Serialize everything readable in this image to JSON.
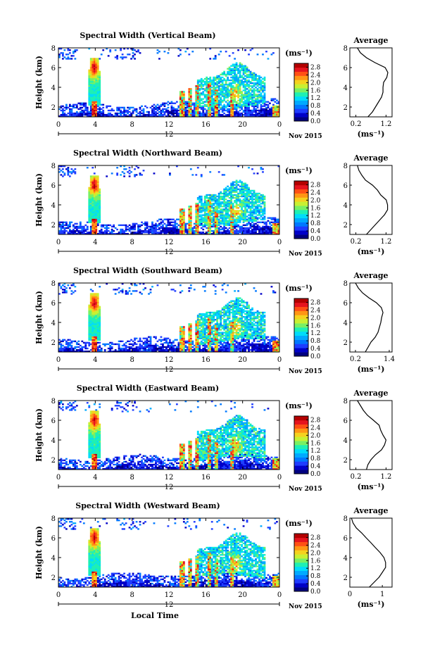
{
  "shared": {
    "date_label": "Nov 2015",
    "day_label": "12",
    "xlabel": "Local Time",
    "ylabel": "Height (km)",
    "colorbar_unit": "(ms⁻¹)",
    "avg_title": "Average",
    "avg_xlabel": "(ms⁻¹)",
    "colors": {
      "palette": [
        "#000080",
        "#0000c8",
        "#1e3cff",
        "#0078ff",
        "#00aaff",
        "#00dcfa",
        "#1ef0b4",
        "#78f064",
        "#c8f032",
        "#f5d21e",
        "#ff9614",
        "#ff5014",
        "#e6141e",
        "#b40000"
      ]
    }
  },
  "chart_data": [
    {
      "type": "heatmap",
      "title": "Spectral Width (Vertical Beam)",
      "x_ticks": [
        "0",
        "4",
        "8",
        "12",
        "16",
        "20",
        "0"
      ],
      "y_ticks": [
        "2",
        "4",
        "6",
        "8"
      ],
      "xlim": [
        0,
        24
      ],
      "ylim": [
        1,
        8
      ],
      "colorbar_ticks": [
        "0.0",
        "0.4",
        "0.8",
        "1.2",
        "1.6",
        "2.0",
        "2.4",
        "2.8"
      ],
      "colorbar_range": [
        0,
        3.0
      ],
      "average_profile": {
        "x_ticks": [
          "0.2",
          "1.2"
        ],
        "xlim": [
          0,
          1.4
        ],
        "height": [
          1,
          1.5,
          2,
          2.5,
          3,
          3.5,
          4,
          4.5,
          5,
          5.5,
          6,
          6.5,
          7,
          7.5,
          8
        ],
        "value": [
          0.6,
          0.75,
          0.85,
          0.95,
          1.05,
          1.1,
          1.1,
          1.15,
          1.2,
          1.25,
          1.15,
          0.85,
          0.55,
          0.35,
          0.25
        ]
      }
    },
    {
      "type": "heatmap",
      "title": "Spectral Width (Northward Beam)",
      "x_ticks": [
        "0",
        "4",
        "8",
        "12",
        "16",
        "20",
        "0"
      ],
      "y_ticks": [
        "2",
        "4",
        "6",
        "8"
      ],
      "xlim": [
        0,
        24
      ],
      "ylim": [
        1,
        8
      ],
      "colorbar_ticks": [
        "0.0",
        "0.4",
        "0.8",
        "1.2",
        "1.6",
        "2.0",
        "2.4",
        "2.8"
      ],
      "colorbar_range": [
        0,
        3.0
      ],
      "average_profile": {
        "x_ticks": [
          "0.2",
          "1.2"
        ],
        "xlim": [
          0,
          1.4
        ],
        "height": [
          1,
          1.5,
          2,
          2.5,
          3,
          3.5,
          4,
          4.5,
          5,
          5.5,
          6,
          6.5,
          7,
          7.5,
          8
        ],
        "value": [
          0.55,
          0.7,
          0.85,
          1.0,
          1.15,
          1.25,
          1.25,
          1.2,
          1.05,
          0.9,
          0.75,
          0.55,
          0.4,
          0.3,
          0.25
        ]
      }
    },
    {
      "type": "heatmap",
      "title": "Spectral Width (Southward Beam)",
      "x_ticks": [
        "0",
        "4",
        "8",
        "12",
        "16",
        "20",
        "0"
      ],
      "y_ticks": [
        "2",
        "4",
        "6",
        "8"
      ],
      "xlim": [
        0,
        24
      ],
      "ylim": [
        1,
        8
      ],
      "colorbar_ticks": [
        "0.0",
        "0.4",
        "0.8",
        "1.2",
        "1.6",
        "2.0",
        "2.4",
        "2.8"
      ],
      "colorbar_range": [
        0,
        3.0
      ],
      "average_profile": {
        "x_ticks": [
          "0.2",
          "1.4"
        ],
        "xlim": [
          0,
          1.5
        ],
        "height": [
          1,
          1.5,
          2,
          2.5,
          3,
          3.5,
          4,
          4.5,
          5,
          5.5,
          6,
          6.5,
          7,
          7.5,
          8
        ],
        "value": [
          0.55,
          0.65,
          0.75,
          0.9,
          1.0,
          1.05,
          1.1,
          1.15,
          1.2,
          1.1,
          0.95,
          0.7,
          0.45,
          0.3,
          0.2
        ]
      }
    },
    {
      "type": "heatmap",
      "title": "Spectral Width (Eastward Beam)",
      "x_ticks": [
        "0",
        "4",
        "8",
        "12",
        "16",
        "20",
        "0"
      ],
      "y_ticks": [
        "2",
        "4",
        "6",
        "8"
      ],
      "xlim": [
        0,
        24
      ],
      "ylim": [
        1,
        8
      ],
      "colorbar_ticks": [
        "0.0",
        "0.4",
        "0.8",
        "1.2",
        "1.6",
        "2.0",
        "2.4",
        "2.8"
      ],
      "colorbar_range": [
        0,
        3.0
      ],
      "average_profile": {
        "x_ticks": [
          "0.2",
          "1.2"
        ],
        "xlim": [
          0,
          1.4
        ],
        "height": [
          1,
          1.5,
          2,
          2.5,
          3,
          3.5,
          4,
          4.5,
          5,
          5.5,
          6,
          6.5,
          7,
          7.5,
          8
        ],
        "value": [
          0.55,
          0.6,
          0.7,
          0.85,
          1.05,
          1.15,
          1.2,
          1.1,
          1.05,
          0.95,
          0.8,
          0.6,
          0.45,
          0.35,
          0.25
        ]
      }
    },
    {
      "type": "heatmap",
      "title": "Spectral Width (Westward Beam)",
      "x_ticks": [
        "0",
        "4",
        "8",
        "12",
        "16",
        "20",
        "0"
      ],
      "y_ticks": [
        "2",
        "4",
        "6",
        "8"
      ],
      "xlim": [
        0,
        24
      ],
      "ylim": [
        1,
        8
      ],
      "colorbar_ticks": [
        "0.0",
        "0.4",
        "0.8",
        "1.2",
        "1.6",
        "2.0",
        "2.4",
        "2.8"
      ],
      "colorbar_range": [
        0,
        3.0
      ],
      "average_profile": {
        "x_ticks": [
          "0",
          "1"
        ],
        "xlim": [
          0,
          1.3
        ],
        "height": [
          1,
          1.5,
          2,
          2.5,
          3,
          3.5,
          4,
          4.5,
          5,
          5.5,
          6,
          6.5,
          7,
          7.5,
          8
        ],
        "value": [
          0.6,
          0.75,
          0.9,
          1.0,
          1.1,
          1.1,
          1.05,
          0.95,
          0.8,
          0.65,
          0.5,
          0.35,
          0.2,
          0.1,
          0.05
        ]
      }
    }
  ]
}
